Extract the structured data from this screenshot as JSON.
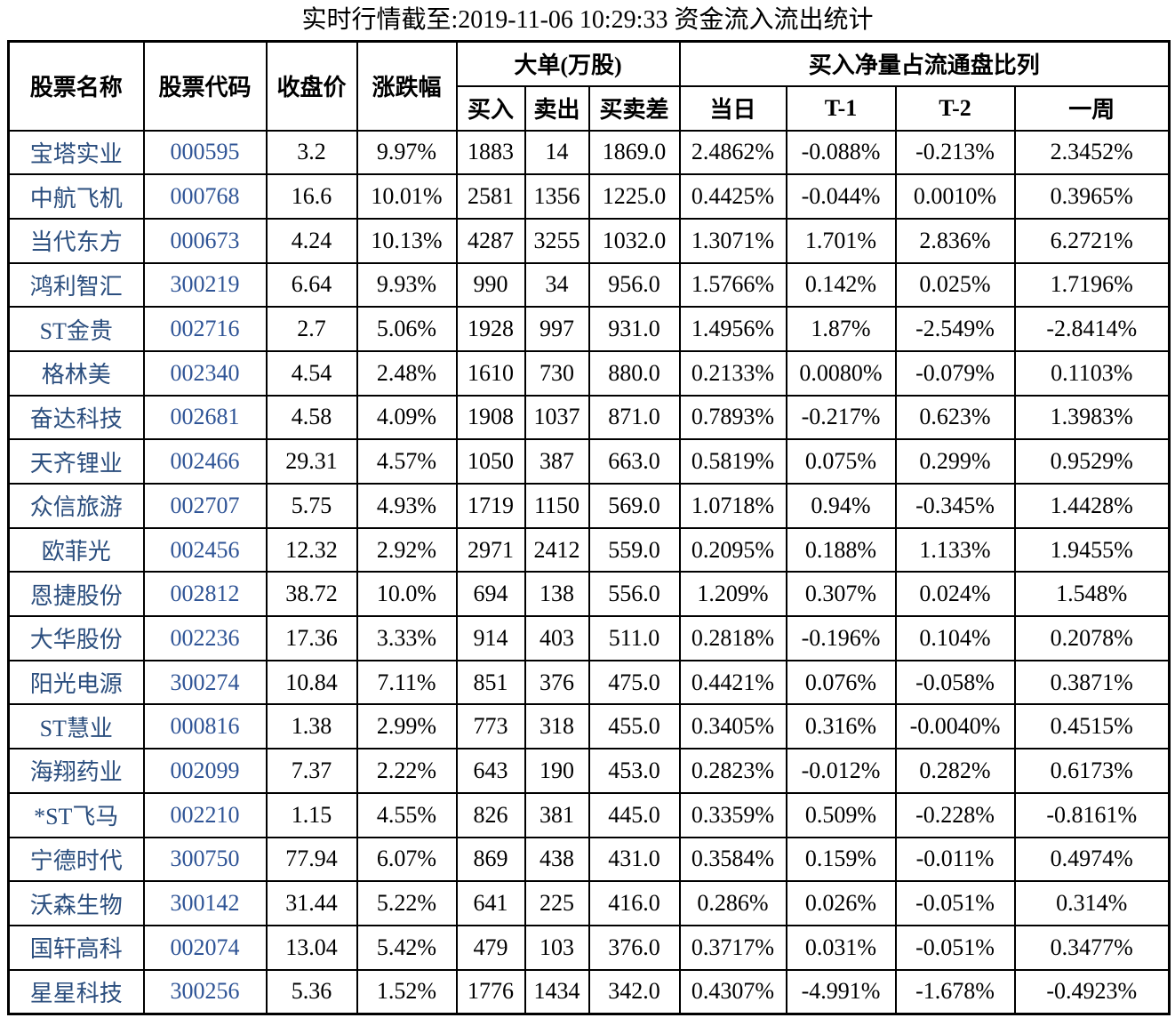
{
  "title": "实时行情截至:2019-11-06 10:29:33 资金流入流出统计",
  "chart_data": {
    "type": "table",
    "title": "实时行情截至:2019-11-06 10:29:33 资金流入流出统计",
    "column_groups": [
      {
        "label": "大单(万股)",
        "columns": [
          "买入",
          "卖出",
          "买卖差"
        ]
      },
      {
        "label": "买入净量占流通盘比列",
        "columns": [
          "当日",
          "T-1",
          "T-2",
          "一周"
        ]
      }
    ],
    "columns": [
      "股票名称",
      "股票代码",
      "收盘价",
      "涨跌幅",
      "买入",
      "卖出",
      "买卖差",
      "当日",
      "T-1",
      "T-2",
      "一周"
    ],
    "rows": [
      [
        "宝塔实业",
        "000595",
        "3.2",
        "9.97%",
        "1883",
        "14",
        "1869.0",
        "2.4862%",
        "-0.088%",
        "-0.213%",
        "2.3452%"
      ],
      [
        "中航飞机",
        "000768",
        "16.6",
        "10.01%",
        "2581",
        "1356",
        "1225.0",
        "0.4425%",
        "-0.044%",
        "0.0010%",
        "0.3965%"
      ],
      [
        "当代东方",
        "000673",
        "4.24",
        "10.13%",
        "4287",
        "3255",
        "1032.0",
        "1.3071%",
        "1.701%",
        "2.836%",
        "6.2721%"
      ],
      [
        "鸿利智汇",
        "300219",
        "6.64",
        "9.93%",
        "990",
        "34",
        "956.0",
        "1.5766%",
        "0.142%",
        "0.025%",
        "1.7196%"
      ],
      [
        "ST金贵",
        "002716",
        "2.7",
        "5.06%",
        "1928",
        "997",
        "931.0",
        "1.4956%",
        "1.87%",
        "-2.549%",
        "-2.8414%"
      ],
      [
        "格林美",
        "002340",
        "4.54",
        "2.48%",
        "1610",
        "730",
        "880.0",
        "0.2133%",
        "0.0080%",
        "-0.079%",
        "0.1103%"
      ],
      [
        "奋达科技",
        "002681",
        "4.58",
        "4.09%",
        "1908",
        "1037",
        "871.0",
        "0.7893%",
        "-0.217%",
        "0.623%",
        "1.3983%"
      ],
      [
        "天齐锂业",
        "002466",
        "29.31",
        "4.57%",
        "1050",
        "387",
        "663.0",
        "0.5819%",
        "0.075%",
        "0.299%",
        "0.9529%"
      ],
      [
        "众信旅游",
        "002707",
        "5.75",
        "4.93%",
        "1719",
        "1150",
        "569.0",
        "1.0718%",
        "0.94%",
        "-0.345%",
        "1.4428%"
      ],
      [
        "欧菲光",
        "002456",
        "12.32",
        "2.92%",
        "2971",
        "2412",
        "559.0",
        "0.2095%",
        "0.188%",
        "1.133%",
        "1.9455%"
      ],
      [
        "恩捷股份",
        "002812",
        "38.72",
        "10.0%",
        "694",
        "138",
        "556.0",
        "1.209%",
        "0.307%",
        "0.024%",
        "1.548%"
      ],
      [
        "大华股份",
        "002236",
        "17.36",
        "3.33%",
        "914",
        "403",
        "511.0",
        "0.2818%",
        "-0.196%",
        "0.104%",
        "0.2078%"
      ],
      [
        "阳光电源",
        "300274",
        "10.84",
        "7.11%",
        "851",
        "376",
        "475.0",
        "0.4421%",
        "0.076%",
        "-0.058%",
        "0.3871%"
      ],
      [
        "ST慧业",
        "000816",
        "1.38",
        "2.99%",
        "773",
        "318",
        "455.0",
        "0.3405%",
        "0.316%",
        "-0.0040%",
        "0.4515%"
      ],
      [
        "海翔药业",
        "002099",
        "7.37",
        "2.22%",
        "643",
        "190",
        "453.0",
        "0.2823%",
        "-0.012%",
        "0.282%",
        "0.6173%"
      ],
      [
        "*ST飞马",
        "002210",
        "1.15",
        "4.55%",
        "826",
        "381",
        "445.0",
        "0.3359%",
        "0.509%",
        "-0.228%",
        "-0.8161%"
      ],
      [
        "宁德时代",
        "300750",
        "77.94",
        "6.07%",
        "869",
        "438",
        "431.0",
        "0.3584%",
        "0.159%",
        "-0.011%",
        "0.4974%"
      ],
      [
        "沃森生物",
        "300142",
        "31.44",
        "5.22%",
        "641",
        "225",
        "416.0",
        "0.286%",
        "0.026%",
        "-0.051%",
        "0.314%"
      ],
      [
        "国轩高科",
        "002074",
        "13.04",
        "5.42%",
        "479",
        "103",
        "376.0",
        "0.3717%",
        "0.031%",
        "-0.051%",
        "0.3477%"
      ],
      [
        "星星科技",
        "300256",
        "5.36",
        "1.52%",
        "1776",
        "1434",
        "342.0",
        "0.4307%",
        "-4.991%",
        "-1.678%",
        "-0.4923%"
      ]
    ]
  },
  "colors": {
    "stock_name_text": "#2b4e7e",
    "stock_code_text": "#2f5496",
    "table_border": "#000000",
    "body_text": "#000000",
    "background": "#ffffff"
  }
}
